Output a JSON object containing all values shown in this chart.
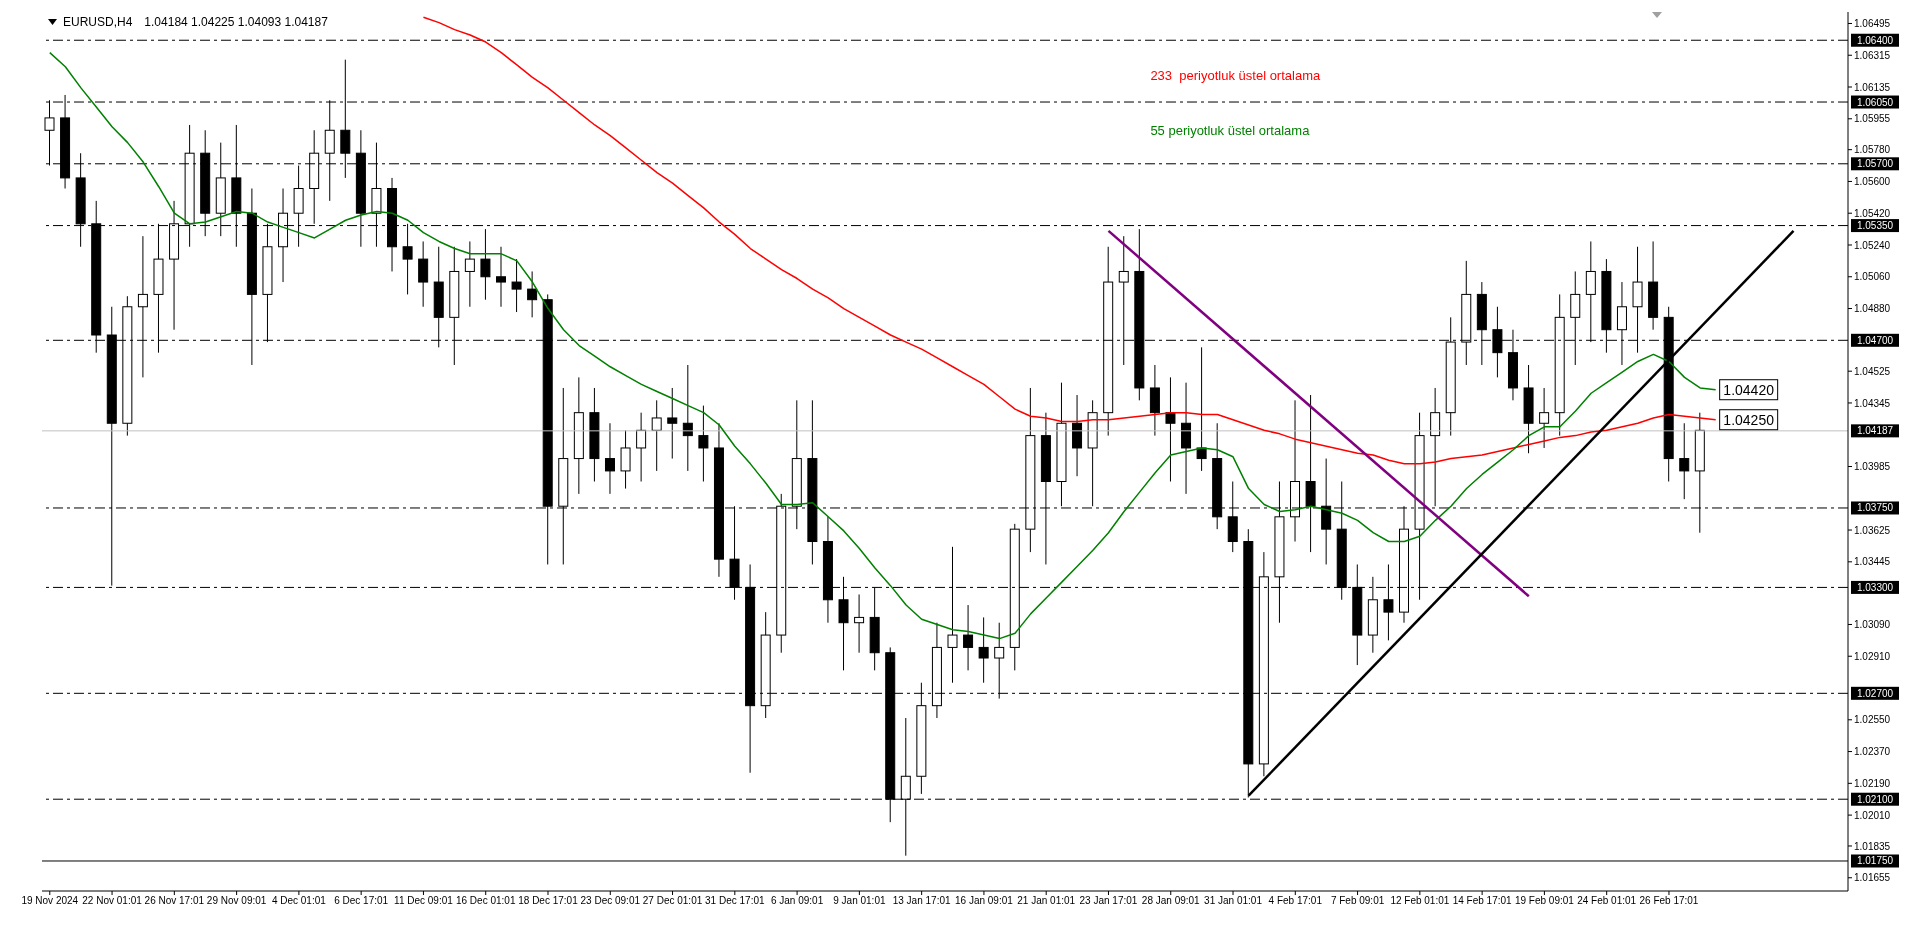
{
  "chart_data": {
    "type": "candlestick",
    "title": "EURUSD,H4",
    "subtitle": "1.04184 1.04225 1.04093 1.04187",
    "color": "#000000",
    "categories": [
      "19 Nov 2024",
      null,
      null,
      null,
      "22 Nov 01:01",
      null,
      null,
      null,
      "26 Nov 17:01",
      null,
      null,
      null,
      "29 Nov 09:01",
      null,
      null,
      null,
      "4 Dec 01:01",
      null,
      null,
      null,
      "6 Dec 17:01",
      null,
      null,
      null,
      "11 Dec 09:01",
      null,
      null,
      null,
      "16 Dec 01:01",
      null,
      null,
      null,
      "18 Dec 17:01",
      null,
      null,
      null,
      "23 Dec 09:01",
      null,
      null,
      null,
      "27 Dec 01:01",
      null,
      null,
      null,
      "31 Dec 17:01",
      null,
      null,
      null,
      "6 Jan 09:01",
      null,
      null,
      null,
      "9 Jan 01:01",
      null,
      null,
      null,
      "13 Jan 17:01",
      null,
      null,
      null,
      "16 Jan 09:01",
      null,
      null,
      null,
      "21 Jan 01:01",
      null,
      null,
      null,
      "23 Jan 17:01",
      null,
      null,
      null,
      "28 Jan 09:01",
      null,
      null,
      null,
      "31 Jan 01:01",
      null,
      null,
      null,
      "4 Feb 17:01",
      null,
      null,
      null,
      "7 Feb 09:01",
      null,
      null,
      null,
      "12 Feb 01:01",
      null,
      null,
      null,
      "14 Feb 17:01",
      null,
      null,
      null,
      "19 Feb 09:01",
      null,
      null,
      null,
      "24 Feb 01:01",
      null,
      null,
      null,
      "26 Feb 17:01",
      null,
      null,
      null,
      null,
      null,
      null,
      null,
      null,
      null,
      null,
      null
    ],
    "ohlc": [
      [
        1.0589,
        1.0606,
        1.0569,
        1.0596
      ],
      [
        1.0596,
        1.0609,
        1.0556,
        1.0562
      ],
      [
        1.0562,
        1.0576,
        1.0523,
        1.0536
      ],
      [
        1.0536,
        1.0549,
        1.0463,
        1.0473
      ],
      [
        1.0473,
        1.0489,
        1.0331,
        1.0423
      ],
      [
        1.0423,
        1.0495,
        1.0416,
        1.0489
      ],
      [
        1.0489,
        1.0529,
        1.0449,
        1.0496
      ],
      [
        1.0496,
        1.0536,
        1.0463,
        1.0516
      ],
      [
        1.0516,
        1.0549,
        1.0476,
        1.0536
      ],
      [
        1.0536,
        1.0592,
        1.0523,
        1.0576
      ],
      [
        1.0576,
        1.0589,
        1.0529,
        1.0542
      ],
      [
        1.0542,
        1.0582,
        1.0529,
        1.0562
      ],
      [
        1.0562,
        1.0592,
        1.0523,
        1.0542
      ],
      [
        1.0542,
        1.0556,
        1.0456,
        1.0496
      ],
      [
        1.0496,
        1.0536,
        1.0469,
        1.0523
      ],
      [
        1.0523,
        1.0556,
        1.0503,
        1.0542
      ],
      [
        1.0542,
        1.0569,
        1.0523,
        1.0556
      ],
      [
        1.0556,
        1.0589,
        1.0536,
        1.0576
      ],
      [
        1.0576,
        1.0606,
        1.0549,
        1.0589
      ],
      [
        1.0589,
        1.0629,
        1.0562,
        1.0576
      ],
      [
        1.0576,
        1.0589,
        1.0523,
        1.0542
      ],
      [
        1.0542,
        1.0582,
        1.0523,
        1.0556
      ],
      [
        1.0556,
        1.0562,
        1.0509,
        1.0523
      ],
      [
        1.0523,
        1.0536,
        1.0496,
        1.0516
      ],
      [
        1.0516,
        1.0526,
        1.0489,
        1.0503
      ],
      [
        1.0503,
        1.0523,
        1.0466,
        1.0483
      ],
      [
        1.0483,
        1.0523,
        1.0456,
        1.0509
      ],
      [
        1.0509,
        1.0526,
        1.0489,
        1.0516
      ],
      [
        1.0516,
        1.0533,
        1.0493,
        1.0506
      ],
      [
        1.0506,
        1.0523,
        1.0489,
        1.0503
      ],
      [
        1.0503,
        1.0516,
        1.0486,
        1.0499
      ],
      [
        1.0499,
        1.0509,
        1.0483,
        1.0493
      ],
      [
        1.0493,
        1.0496,
        1.0343,
        1.0376
      ],
      [
        1.0376,
        1.0443,
        1.0343,
        1.0403
      ],
      [
        1.0403,
        1.0449,
        1.0383,
        1.0429
      ],
      [
        1.0429,
        1.0443,
        1.039,
        1.0403
      ],
      [
        1.0403,
        1.0423,
        1.0383,
        1.0396
      ],
      [
        1.0396,
        1.0419,
        1.0386,
        1.0409
      ],
      [
        1.0409,
        1.0429,
        1.039,
        1.0419
      ],
      [
        1.0419,
        1.0436,
        1.0396,
        1.0426
      ],
      [
        1.0426,
        1.0443,
        1.0403,
        1.0423
      ],
      [
        1.0423,
        1.0456,
        1.0396,
        1.0416
      ],
      [
        1.0416,
        1.0433,
        1.039,
        1.0409
      ],
      [
        1.0409,
        1.0423,
        1.0336,
        1.0346
      ],
      [
        1.0346,
        1.0376,
        1.0323,
        1.033
      ],
      [
        1.033,
        1.0343,
        1.0225,
        1.0263
      ],
      [
        1.0263,
        1.0316,
        1.0256,
        1.0303
      ],
      [
        1.0303,
        1.0383,
        1.0293,
        1.0376
      ],
      [
        1.0376,
        1.0436,
        1.0363,
        1.0403
      ],
      [
        1.0403,
        1.0436,
        1.0343,
        1.0356
      ],
      [
        1.0356,
        1.037,
        1.031,
        1.0323
      ],
      [
        1.0323,
        1.0336,
        1.0283,
        1.031
      ],
      [
        1.031,
        1.0326,
        1.0293,
        1.0313
      ],
      [
        1.0313,
        1.033,
        1.0283,
        1.0293
      ],
      [
        1.0293,
        1.0296,
        1.0197,
        1.021
      ],
      [
        1.021,
        1.0256,
        1.0178,
        1.0223
      ],
      [
        1.0223,
        1.0276,
        1.0213,
        1.0263
      ],
      [
        1.0263,
        1.031,
        1.0256,
        1.0296
      ],
      [
        1.0296,
        1.0353,
        1.0276,
        1.0303
      ],
      [
        1.0303,
        1.032,
        1.0283,
        1.0296
      ],
      [
        1.0296,
        1.0313,
        1.0276,
        1.029
      ],
      [
        1.029,
        1.031,
        1.0267,
        1.0296
      ],
      [
        1.0296,
        1.0366,
        1.0283,
        1.0363
      ],
      [
        1.0363,
        1.0443,
        1.035,
        1.0416
      ],
      [
        1.0416,
        1.0429,
        1.0343,
        1.039
      ],
      [
        1.039,
        1.0446,
        1.0376,
        1.0423
      ],
      [
        1.0423,
        1.0439,
        1.0393,
        1.0409
      ],
      [
        1.0409,
        1.0436,
        1.0376,
        1.0429
      ],
      [
        1.0429,
        1.0523,
        1.0416,
        1.0503
      ],
      [
        1.0503,
        1.0529,
        1.0456,
        1.0509
      ],
      [
        1.0509,
        1.0533,
        1.0436,
        1.0443
      ],
      [
        1.0443,
        1.0456,
        1.0416,
        1.0429
      ],
      [
        1.0429,
        1.0449,
        1.039,
        1.0423
      ],
      [
        1.0423,
        1.0446,
        1.0383,
        1.0409
      ],
      [
        1.0409,
        1.0466,
        1.0396,
        1.0403
      ],
      [
        1.0403,
        1.0423,
        1.0363,
        1.037
      ],
      [
        1.037,
        1.039,
        1.035,
        1.0356
      ],
      [
        1.0356,
        1.0363,
        1.0211,
        1.023
      ],
      [
        1.023,
        1.035,
        1.0223,
        1.0336
      ],
      [
        1.0336,
        1.039,
        1.031,
        1.037
      ],
      [
        1.037,
        1.0436,
        1.0356,
        1.039
      ],
      [
        1.039,
        1.0439,
        1.035,
        1.0376
      ],
      [
        1.0376,
        1.0403,
        1.0343,
        1.0363
      ],
      [
        1.0363,
        1.039,
        1.0323,
        1.033
      ],
      [
        1.033,
        1.0343,
        1.0286,
        1.0303
      ],
      [
        1.0303,
        1.0336,
        1.0293,
        1.0323
      ],
      [
        1.0323,
        1.0343,
        1.03,
        1.0316
      ],
      [
        1.0316,
        1.0376,
        1.031,
        1.0363
      ],
      [
        1.0363,
        1.0429,
        1.0323,
        1.0416
      ],
      [
        1.0416,
        1.0443,
        1.0376,
        1.0429
      ],
      [
        1.0429,
        1.0483,
        1.0416,
        1.0469
      ],
      [
        1.0469,
        1.0515,
        1.0456,
        1.0496
      ],
      [
        1.0496,
        1.0503,
        1.0456,
        1.0476
      ],
      [
        1.0476,
        1.0489,
        1.0449,
        1.0463
      ],
      [
        1.0463,
        1.0476,
        1.0436,
        1.0443
      ],
      [
        1.0443,
        1.0456,
        1.0406,
        1.0423
      ],
      [
        1.0423,
        1.0443,
        1.0409,
        1.0429
      ],
      [
        1.0429,
        1.0496,
        1.0416,
        1.0483
      ],
      [
        1.0483,
        1.0509,
        1.0456,
        1.0496
      ],
      [
        1.0496,
        1.0526,
        1.0469,
        1.0509
      ],
      [
        1.0509,
        1.0516,
        1.0463,
        1.0476
      ],
      [
        1.0476,
        1.0503,
        1.0456,
        1.0489
      ],
      [
        1.0489,
        1.0523,
        1.0463,
        1.0503
      ],
      [
        1.0503,
        1.0526,
        1.0476,
        1.0483
      ],
      [
        1.0483,
        1.0489,
        1.039,
        1.0403
      ],
      [
        1.0403,
        1.0423,
        1.038,
        1.0396
      ],
      [
        1.0396,
        1.0429,
        1.0361,
        1.0419
      ],
      null,
      null,
      null,
      null,
      null,
      null,
      null,
      null,
      null
    ],
    "series": [
      {
        "type": "line",
        "name": "233  periyotluk üstel ortalama",
        "color": "#ff0000",
        "values": [
          null,
          null,
          null,
          null,
          null,
          null,
          null,
          null,
          null,
          null,
          null,
          null,
          null,
          null,
          null,
          null,
          null,
          null,
          null,
          null,
          null,
          null,
          null,
          null,
          1.0653,
          1.065,
          1.0646,
          1.0643,
          1.0639,
          1.0633,
          1.0626,
          1.0619,
          1.0613,
          1.0606,
          1.0599,
          1.0592,
          1.0586,
          1.0579,
          1.0572,
          1.0565,
          1.0559,
          1.0552,
          1.0545,
          1.0537,
          1.053,
          1.0522,
          1.0516,
          1.051,
          1.0505,
          1.0499,
          1.0494,
          1.0488,
          1.0483,
          1.0478,
          1.0473,
          1.0469,
          1.0465,
          1.046,
          1.0455,
          1.045,
          1.0445,
          1.0438,
          1.0431,
          1.0427,
          1.0426,
          1.0424,
          1.0424,
          1.0425,
          1.0425,
          1.0426,
          1.0427,
          1.0428,
          1.0429,
          1.0429,
          1.0428,
          1.0428,
          1.0425,
          1.0422,
          1.0419,
          1.0417,
          1.0414,
          1.0412,
          1.041,
          1.0408,
          1.0406,
          1.0405,
          1.0402,
          1.04,
          1.04,
          1.0401,
          1.0403,
          1.0404,
          1.0405,
          1.0407,
          1.0409,
          1.0411,
          1.0413,
          1.0415,
          1.0416,
          1.0418,
          1.0419,
          1.0421,
          1.0423,
          1.0426,
          1.0428,
          1.0427,
          1.0426,
          1.0425,
          null,
          null,
          null,
          null,
          null,
          null,
          null,
          null
        ]
      },
      {
        "type": "line",
        "name": "55 periyotluk üstel ortalama",
        "color": "#008000",
        "values": [
          1.0633,
          1.0625,
          1.0613,
          1.0602,
          1.0591,
          1.0582,
          1.0571,
          1.0557,
          1.0542,
          1.0536,
          1.0537,
          1.054,
          1.0543,
          1.0542,
          1.0537,
          1.0534,
          1.0531,
          1.0528,
          1.0533,
          1.0538,
          1.0541,
          1.0543,
          1.0542,
          1.0538,
          1.0531,
          1.0526,
          1.0522,
          1.0519,
          1.0519,
          1.0519,
          1.0515,
          1.0503,
          1.0488,
          1.0476,
          1.0467,
          1.0461,
          1.0455,
          1.045,
          1.0445,
          1.0441,
          1.0437,
          1.0433,
          1.0429,
          1.0422,
          1.041,
          1.04,
          1.0389,
          1.0377,
          1.0377,
          1.0378,
          1.037,
          1.0362,
          1.0352,
          1.0341,
          1.0331,
          1.032,
          1.0312,
          1.0309,
          1.0306,
          1.0305,
          1.0303,
          1.0301,
          1.0304,
          1.0315,
          1.0324,
          1.0333,
          1.0342,
          1.0351,
          1.0361,
          1.0373,
          1.0384,
          1.0395,
          1.0405,
          1.0407,
          1.0409,
          1.0408,
          1.0404,
          1.0386,
          1.0377,
          1.0373,
          1.0374,
          1.0376,
          1.0374,
          1.0372,
          1.0368,
          1.0361,
          1.0356,
          1.0356,
          1.0359,
          1.0368,
          1.0376,
          1.0386,
          1.0394,
          1.0401,
          1.0408,
          1.0416,
          1.0421,
          1.0421,
          1.043,
          1.044,
          1.0446,
          1.0452,
          1.0458,
          1.0462,
          1.0458,
          1.0449,
          1.0443,
          1.0442,
          null,
          null,
          null,
          null,
          null,
          null,
          null,
          null
        ]
      },
      {
        "type": "line",
        "color": "#800080",
        "values": [
          null,
          null,
          null,
          null,
          null,
          null,
          null,
          null,
          null,
          null,
          null,
          null,
          null,
          null,
          null,
          null,
          null,
          null,
          null,
          null,
          null,
          null,
          null,
          null,
          null,
          null,
          null,
          null,
          null,
          null,
          null,
          null,
          null,
          null,
          null,
          null,
          null,
          null,
          null,
          null,
          null,
          null,
          null,
          null,
          null,
          null,
          null,
          null,
          null,
          null,
          null,
          null,
          null,
          null,
          null,
          null,
          null,
          null,
          null,
          null,
          null,
          null,
          null,
          null,
          null,
          null,
          null,
          null,
          1.0532,
          null,
          null,
          null,
          null,
          null,
          null,
          null,
          null,
          null,
          null,
          null,
          null,
          null,
          null,
          null,
          null,
          null,
          null,
          null,
          null,
          null,
          null,
          null,
          null,
          null,
          null,
          1.0325,
          null,
          null,
          null,
          null,
          null,
          null,
          null,
          null,
          null,
          null,
          null,
          null,
          null,
          null,
          null,
          null,
          null,
          null,
          null,
          null
        ]
      },
      {
        "type": "line",
        "color": "#000000",
        "values": [
          null,
          null,
          null,
          null,
          null,
          null,
          null,
          null,
          null,
          null,
          null,
          null,
          null,
          null,
          null,
          null,
          null,
          null,
          null,
          null,
          null,
          null,
          null,
          null,
          null,
          null,
          null,
          null,
          null,
          null,
          null,
          null,
          null,
          null,
          null,
          null,
          null,
          null,
          null,
          null,
          null,
          null,
          null,
          null,
          null,
          null,
          null,
          null,
          null,
          null,
          null,
          null,
          null,
          null,
          null,
          null,
          null,
          null,
          null,
          null,
          null,
          null,
          null,
          null,
          null,
          null,
          null,
          null,
          null,
          null,
          null,
          null,
          null,
          null,
          null,
          null,
          null,
          1.0212,
          null,
          null,
          null,
          null,
          null,
          null,
          null,
          null,
          null,
          null,
          null,
          null,
          null,
          null,
          null,
          null,
          null,
          null,
          null,
          null,
          null,
          null,
          null,
          null,
          null,
          null,
          null,
          null,
          null,
          null,
          null,
          null,
          null,
          null,
          1.0532,
          null,
          null,
          null
        ]
      }
    ],
    "ylim": [
      1.0158,
      1.0656
    ],
    "yticks": [
      1.06495,
      1.06315,
      1.06135,
      1.05955,
      {
        "value": 1.0578,
        "label": "1.05780"
      },
      {
        "value": 1.056,
        "label": "1.05600"
      },
      {
        "value": 1.0542,
        "label": "1.05420"
      },
      {
        "value": 1.0524,
        "label": "1.05240"
      },
      {
        "value": 1.0506,
        "label": "1.05060"
      },
      {
        "value": 1.0488,
        "label": "1.04880"
      },
      1.04525,
      1.04345,
      1.03985,
      1.03625,
      1.03445,
      {
        "value": 1.0309,
        "label": "1.03090"
      },
      {
        "value": 1.0291,
        "label": "1.02910"
      },
      {
        "value": 1.0255,
        "label": "1.02550"
      },
      {
        "value": 1.0237,
        "label": "1.02370"
      },
      {
        "value": 1.0219,
        "label": "1.02190"
      },
      {
        "value": 1.0201,
        "label": "1.02010"
      },
      1.01835,
      1.01655
    ],
    "ref_lines": [
      {
        "axis": "y",
        "value": 1.064,
        "label": "1.06400",
        "color": "#000000",
        "line_style": "dashed"
      },
      {
        "axis": "y",
        "value": 1.0605,
        "label": "1.06050",
        "color": "#000000",
        "line_style": "dashed"
      },
      {
        "axis": "y",
        "value": 1.057,
        "label": "1.05700",
        "color": "#000000",
        "line_style": "dashed"
      },
      {
        "axis": "y",
        "value": 1.0535,
        "label": "1.05350",
        "color": "#000000",
        "line_style": "dashed"
      },
      {
        "axis": "y",
        "value": 1.047,
        "label": "1.04700",
        "color": "#000000",
        "line_style": "dashed"
      },
      {
        "axis": "y",
        "value": 1.04187,
        "label": "1.04187",
        "color": "#c0c0c0",
        "line_style": "solid"
      },
      {
        "axis": "y",
        "value": 1.0375,
        "label": "1.03750",
        "color": "#000000",
        "line_style": "dashed"
      },
      {
        "axis": "y",
        "value": 1.033,
        "label": "1.03300",
        "color": "#000000",
        "line_style": "dashed"
      },
      {
        "axis": "y",
        "value": 1.027,
        "label": "1.02700",
        "color": "#000000",
        "line_style": "dashed"
      },
      {
        "axis": "y",
        "value": 1.021,
        "label": "1.02100",
        "color": "#000000",
        "line_style": "dashed"
      },
      {
        "axis": "y",
        "value": 1.0175,
        "label": "1.01750",
        "color": "#000000",
        "line_style": "solid"
      }
    ],
    "annotations": [
      "1.04420",
      "1.04250"
    ],
    "legend": "top"
  }
}
